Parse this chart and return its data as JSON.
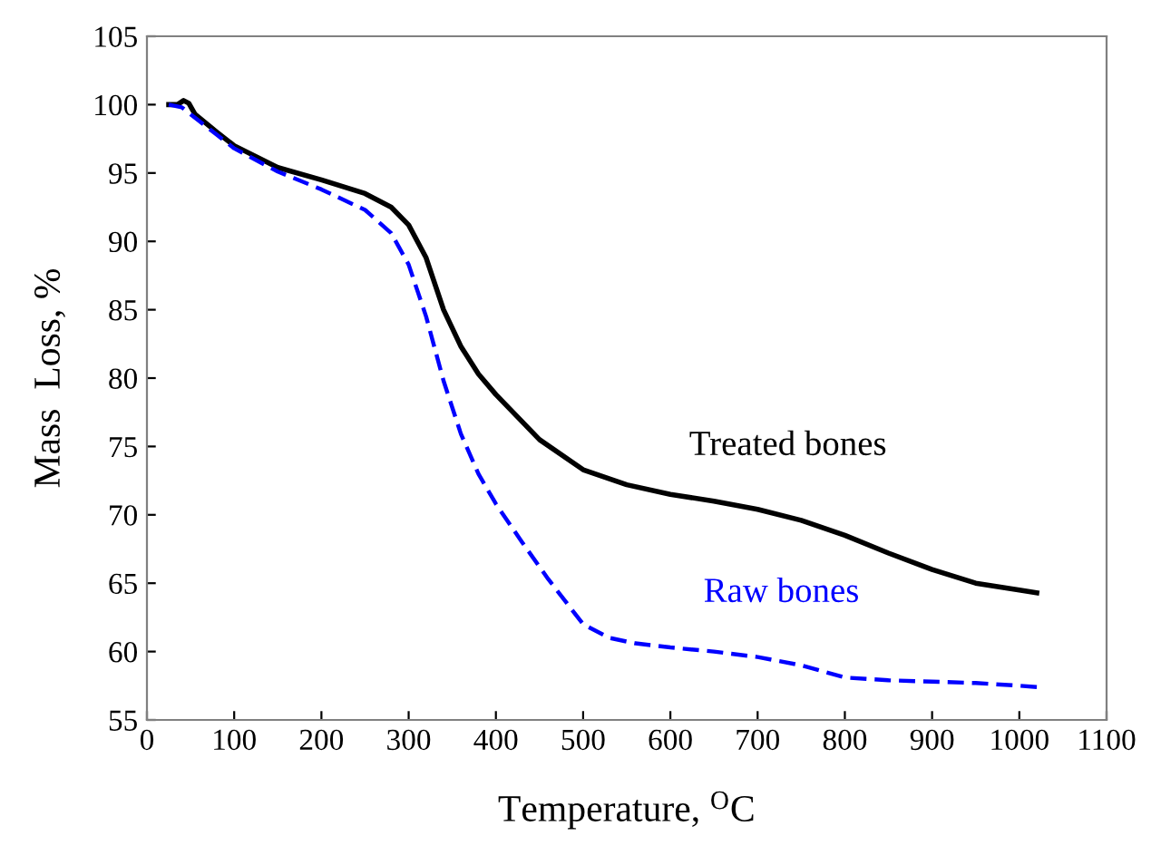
{
  "chart_data": {
    "type": "line",
    "xlabel": "Temperature, $^{O}$C",
    "ylabel": "Mass  Loss, %",
    "xlim": [
      0,
      1100
    ],
    "xticks": [
      0,
      100,
      200,
      300,
      400,
      500,
      600,
      700,
      800,
      900,
      1000,
      1100
    ],
    "ylim": [
      55,
      105
    ],
    "yticks": [
      55,
      60,
      65,
      70,
      75,
      80,
      85,
      90,
      95,
      100,
      105
    ],
    "grid": false,
    "legend": false,
    "marker": "none",
    "series": [
      {
        "name": "Treated bones",
        "color": "#000000",
        "line_style": "solid",
        "x": [
          25,
          35,
          42,
          48,
          55,
          80,
          100,
          150,
          200,
          250,
          280,
          300,
          320,
          340,
          360,
          380,
          400,
          450,
          500,
          550,
          600,
          650,
          700,
          750,
          800,
          850,
          900,
          950,
          1000,
          1020
        ],
        "values": [
          100,
          100,
          100.3,
          100.1,
          99.3,
          98.0,
          97.0,
          95.4,
          94.5,
          93.5,
          92.5,
          91.2,
          88.8,
          85.0,
          82.3,
          80.3,
          78.8,
          75.5,
          73.3,
          72.2,
          71.5,
          71.0,
          70.4,
          69.6,
          68.5,
          67.2,
          66.0,
          65.0,
          64.5,
          64.3
        ]
      },
      {
        "name": "Raw bones",
        "color": "#0000ff",
        "line_style": "dashed",
        "x": [
          25,
          40,
          60,
          80,
          100,
          150,
          200,
          250,
          280,
          300,
          320,
          340,
          360,
          380,
          400,
          430,
          460,
          500,
          530,
          560,
          600,
          650,
          700,
          750,
          800,
          850,
          900,
          950,
          1000,
          1020
        ],
        "values": [
          100,
          99.8,
          98.8,
          97.8,
          96.8,
          95.1,
          93.8,
          92.3,
          90.6,
          88.3,
          84.5,
          79.8,
          75.9,
          73.0,
          70.8,
          68.0,
          65.3,
          62.0,
          61.0,
          60.6,
          60.3,
          60.0,
          59.6,
          59.0,
          58.1,
          57.9,
          57.8,
          57.7,
          57.5,
          57.4
        ]
      }
    ]
  }
}
